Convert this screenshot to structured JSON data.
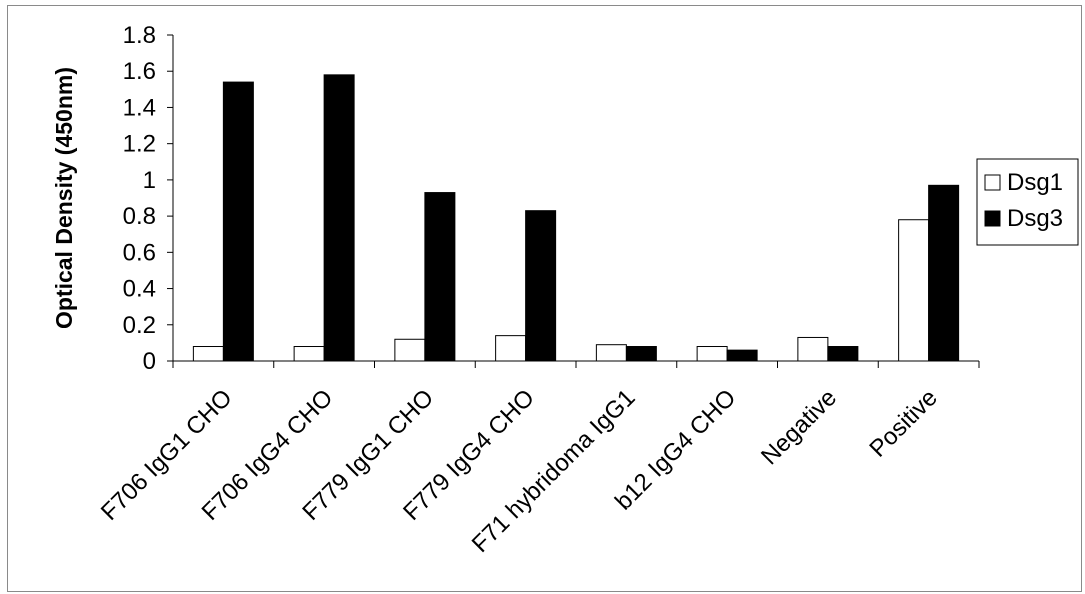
{
  "chart_data": {
    "type": "bar",
    "title": "",
    "xlabel": "",
    "ylabel": "Optical Density (450nm)",
    "ylim": [
      0,
      1.8
    ],
    "yticks": [
      "0",
      "0.2",
      "0.4",
      "0.6",
      "0.8",
      "1",
      "1.2",
      "1.4",
      "1.6",
      "1.8"
    ],
    "grid": false,
    "legend_position": "right",
    "categories": [
      "F706 IgG1 CHO",
      "F706 IgG4 CHO",
      "F779 IgG1 CHO",
      "F779 IgG4 CHO",
      "F71 hybridoma IgG1",
      "b12 IgG4 CHO",
      "Negative",
      "Positive"
    ],
    "series": [
      {
        "name": "Dsg1",
        "fill": "#ffffff",
        "values": [
          0.08,
          0.08,
          0.12,
          0.14,
          0.09,
          0.08,
          0.13,
          0.78
        ]
      },
      {
        "name": "Dsg3",
        "fill": "#000000",
        "values": [
          1.54,
          1.58,
          0.93,
          0.83,
          0.08,
          0.06,
          0.08,
          0.97
        ]
      }
    ]
  }
}
